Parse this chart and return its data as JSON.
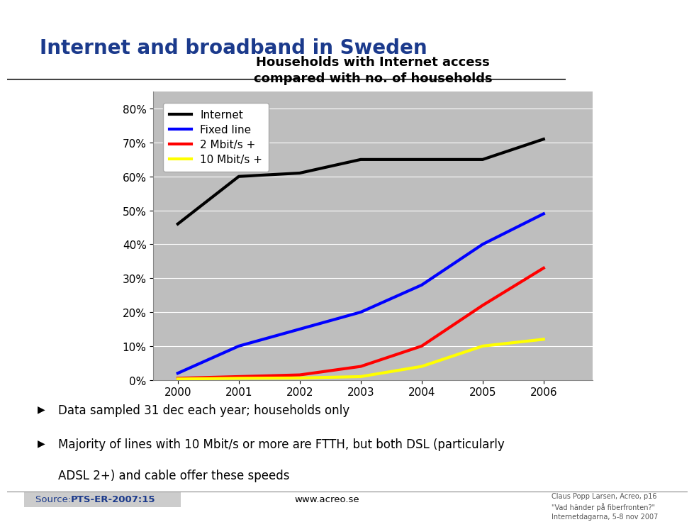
{
  "title_main": "Internet and broadband in Sweden",
  "chart_title": "Households with Internet access\ncompared with no. of households",
  "years": [
    2000,
    2001,
    2002,
    2003,
    2004,
    2005,
    2006
  ],
  "internet": [
    0.46,
    0.6,
    0.61,
    0.65,
    0.65,
    0.65,
    0.71
  ],
  "fixed_line": [
    0.02,
    0.1,
    0.15,
    0.2,
    0.28,
    0.4,
    0.49
  ],
  "mbit2": [
    0.005,
    0.01,
    0.015,
    0.04,
    0.1,
    0.22,
    0.33
  ],
  "mbit10": [
    0.003,
    0.005,
    0.006,
    0.01,
    0.04,
    0.1,
    0.12
  ],
  "internet_color": "#000000",
  "fixed_line_color": "#0000FF",
  "mbit2_color": "#FF0000",
  "mbit10_color": "#FFFF00",
  "line_width": 3.0,
  "plot_bg_color": "#BEBEBE",
  "ylim": [
    0,
    0.85
  ],
  "yticks": [
    0.0,
    0.1,
    0.2,
    0.3,
    0.4,
    0.5,
    0.6,
    0.7,
    0.8
  ],
  "ytick_labels": [
    "0%",
    "10%",
    "20%",
    "30%",
    "40%",
    "50%",
    "60%",
    "70%",
    "80%"
  ],
  "legend_labels": [
    "Internet",
    "Fixed line",
    "2 Mbit/s +",
    "10 Mbit/s +"
  ],
  "bullet1": "Data sampled 31 dec each year; households only",
  "bullet2a": "Majority of lines with 10 Mbit/s or more are FTTH, but both DSL (particularly",
  "bullet2b": "ADSL 2+) and cable offer these speeds",
  "source_normal": "Source: ",
  "source_bold": "PTS-ER-2007:15",
  "website": "www.acreo.se",
  "footer": "Claus Popp Larsen, Acreo, p16\n\"Vad händer på fiberfronten?\"\nInternetdagarna, 5-8 nov 2007",
  "title_color": "#1B3A8C",
  "source_color": "#1B3A8C",
  "acreo_blue": "#1B5BAB",
  "grid_color": "#FFFFFF",
  "separator_color": "#444444"
}
